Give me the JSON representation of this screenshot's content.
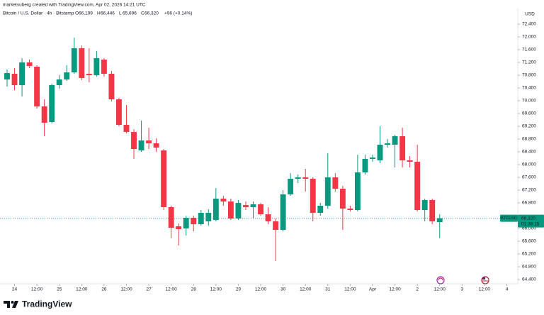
{
  "header": {
    "credit": "marketsuberg created with TradingView.com, Apr 02, 2026 14:21 UTC",
    "symbol": "Bitcoin / U.S. Dollar · 4h · Bitstamp",
    "ohlc_labels": [
      "O",
      "H",
      "L",
      "C"
    ],
    "ohlc_values": [
      "66,199",
      "66,446",
      "65,696",
      "66,320"
    ],
    "change": "+96 (+0.14%)"
  },
  "footer": {
    "brand": "TradingView"
  },
  "chart_data": {
    "type": "candlestick",
    "currency": "USD",
    "symbol_tag": "BTCUSD",
    "last_price": {
      "value": 66320,
      "label": "66,320"
    },
    "countdown": "01:38:15",
    "up_color": "#089981",
    "down_color": "#f23645",
    "open": [
      70667,
      70844,
      70489,
      71200,
      71067,
      69822,
      69333,
      70489,
      70667,
      70889,
      71644,
      70844,
      70800,
      71289,
      70844,
      70044,
      69244,
      69022,
      68444,
      68756,
      68667,
      68444,
      66667,
      66067,
      66000,
      66333,
      66133,
      66222,
      66267,
      66933,
      66844,
      66311,
      66733,
      66667,
      66756,
      66444,
      66222,
      65956,
      67067,
      67556,
      67600,
      67556,
      66489,
      66711,
      67600,
      67244,
      66622,
      66578,
      67756,
      68178,
      68133,
      68622,
      68622,
      68889,
      68133,
      68089,
      66578,
      66889,
      66199
    ],
    "high": [
      70978,
      71022,
      71333,
      71289,
      71111,
      70044,
      70533,
      70800,
      71111,
      71978,
      71733,
      71644,
      71556,
      71333,
      70933,
      70089,
      69867,
      69111,
      69378,
      69156,
      68822,
      68489,
      66711,
      66156,
      66400,
      66400,
      66578,
      66600,
      67267,
      67022,
      66933,
      66889,
      66844,
      66844,
      66800,
      66667,
      66311,
      67200,
      67733,
      67689,
      67867,
      67600,
      66800,
      68356,
      67733,
      67333,
      66711,
      68311,
      68311,
      68311,
      69200,
      68800,
      68933,
      69156,
      68267,
      68622,
      66933,
      66933,
      66446
    ],
    "low": [
      70444,
      70333,
      70133,
      71022,
      69756,
      68889,
      69289,
      70378,
      70622,
      70844,
      70644,
      70578,
      70756,
      70756,
      69978,
      69200,
      68978,
      68178,
      68400,
      68489,
      68400,
      66578,
      65689,
      65467,
      65778,
      65911,
      66089,
      66089,
      66222,
      66711,
      66267,
      66267,
      66578,
      66311,
      66400,
      66133,
      64978,
      65911,
      67022,
      67422,
      67156,
      66222,
      66400,
      66622,
      67156,
      65956,
      66533,
      66533,
      67689,
      68089,
      68044,
      68533,
      67911,
      67911,
      67911,
      66533,
      66222,
      66133,
      65696
    ],
    "close": [
      70867,
      70489,
      71200,
      71089,
      69822,
      69311,
      70489,
      70667,
      70889,
      71644,
      70711,
      70800,
      71333,
      70844,
      70044,
      69244,
      69022,
      68489,
      68756,
      68667,
      68533,
      66667,
      66022,
      65978,
      66333,
      66133,
      66489,
      66489,
      66933,
      66844,
      66311,
      66800,
      66667,
      66756,
      66444,
      66222,
      65956,
      67067,
      67556,
      67600,
      67556,
      66489,
      66711,
      67600,
      67244,
      66622,
      66578,
      67756,
      68178,
      68222,
      68622,
      68667,
      68889,
      68133,
      68089,
      66578,
      66889,
      66222,
      66320
    ],
    "xlim": [
      -0.95,
      68.47
    ],
    "xticks": [
      {
        "value": 1,
        "label": "24"
      },
      {
        "value": 4,
        "label": "12:00"
      },
      {
        "value": 7,
        "label": "25"
      },
      {
        "value": 10,
        "label": "12:00"
      },
      {
        "value": 13,
        "label": "26"
      },
      {
        "value": 16,
        "label": "12:00"
      },
      {
        "value": 19,
        "label": "27"
      },
      {
        "value": 22,
        "label": "12:00"
      },
      {
        "value": 25,
        "label": "28"
      },
      {
        "value": 28,
        "label": "12:00"
      },
      {
        "value": 31,
        "label": "29"
      },
      {
        "value": 34,
        "label": "12:00"
      },
      {
        "value": 37,
        "label": "30"
      },
      {
        "value": 40,
        "label": "12:00"
      },
      {
        "value": 43,
        "label": "31"
      },
      {
        "value": 46,
        "label": "12:00"
      },
      {
        "value": 49,
        "label": "Apr"
      },
      {
        "value": 52,
        "label": "12:00"
      },
      {
        "value": 55,
        "label": "2"
      },
      {
        "value": 58,
        "label": "12:00"
      },
      {
        "value": 61,
        "label": "3"
      },
      {
        "value": 64,
        "label": "12:00"
      },
      {
        "value": 67,
        "label": "4"
      }
    ],
    "ylim": [
      64267,
      72889
    ],
    "yticks": [
      {
        "value": 72400,
        "label": "72,400"
      },
      {
        "value": 72000,
        "label": "72,000"
      },
      {
        "value": 71600,
        "label": "71,600"
      },
      {
        "value": 71200,
        "label": "71,200"
      },
      {
        "value": 70800,
        "label": "70,800"
      },
      {
        "value": 70400,
        "label": "70,400"
      },
      {
        "value": 70000,
        "label": "70,000"
      },
      {
        "value": 69600,
        "label": "69,600"
      },
      {
        "value": 69200,
        "label": "69,200"
      },
      {
        "value": 68800,
        "label": "68,800"
      },
      {
        "value": 68400,
        "label": "68,400"
      },
      {
        "value": 68000,
        "label": "68,000"
      },
      {
        "value": 67600,
        "label": "67,600"
      },
      {
        "value": 67200,
        "label": "67,200"
      },
      {
        "value": 66800,
        "label": "66,800"
      },
      {
        "value": 66000,
        "label": "66,000"
      },
      {
        "value": 65600,
        "label": "65,600"
      },
      {
        "value": 65200,
        "label": "65,200"
      },
      {
        "value": 64800,
        "label": "64,800"
      },
      {
        "value": 64400,
        "label": "64,400"
      }
    ]
  }
}
